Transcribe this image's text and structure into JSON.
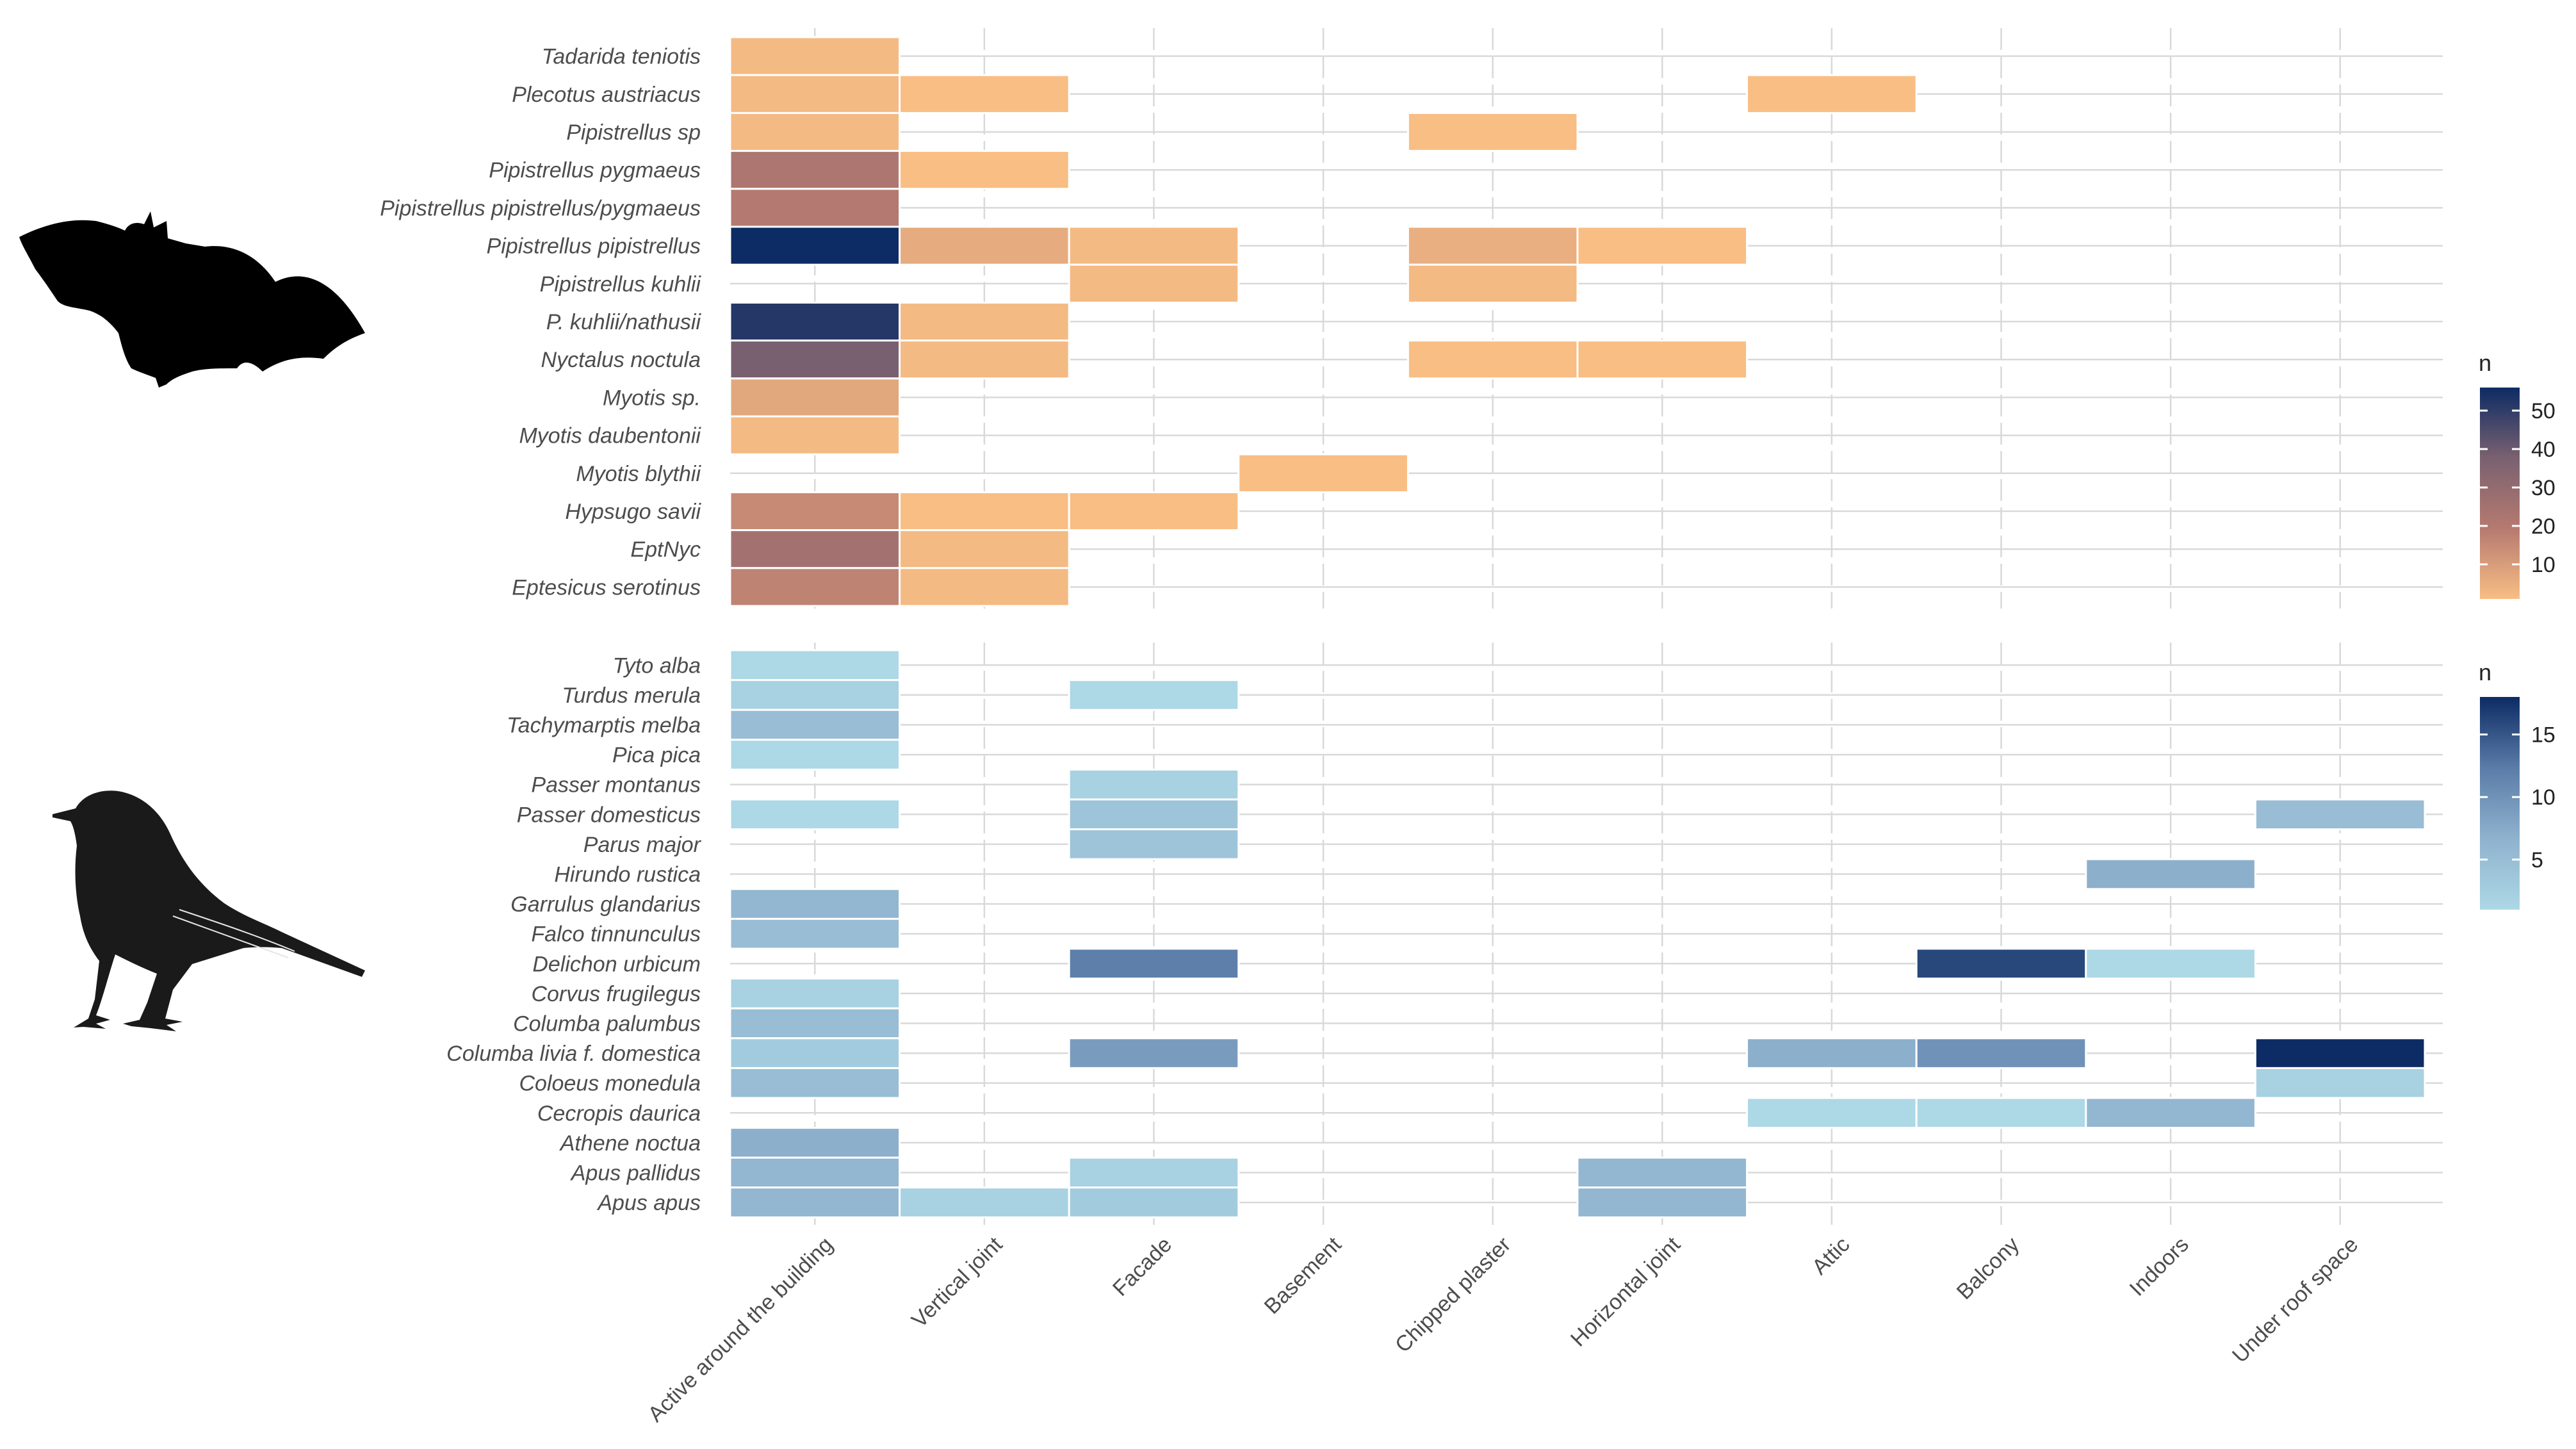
{
  "chart_data": {
    "type": "heatmap",
    "columns": [
      "Active around the building",
      "Vertical joint",
      "Facade",
      "Basement",
      "Chipped plaster",
      "Horizontal joint",
      "Attic",
      "Balcony",
      "Indoors",
      "Under roof space"
    ],
    "panels": [
      {
        "name": "bats",
        "silhouette": "bat-silhouette",
        "legend": {
          "title": "n",
          "ticks": [
            10,
            20,
            30,
            40,
            50
          ],
          "range": [
            1,
            56
          ],
          "colors": [
            "#f8be84",
            "#b67a70",
            "#7a6170",
            "#0d2b64"
          ]
        },
        "rows": [
          "Tadarida teniotis",
          "Plecotus austriacus",
          "Pipistrellus sp",
          "Pipistrellus pygmaeus",
          "Pipistrellus pipistrellus/pygmaeus",
          "Pipistrellus pipistrellus",
          "Pipistrellus kuhlii",
          "P. kuhlii/nathusii",
          "Nyctalus noctula",
          "Myotis sp.",
          "Myotis daubentonii",
          "Myotis blythii",
          "Hypsugo savii",
          "EptNyc",
          "Eptesicus serotinus"
        ],
        "cells": [
          {
            "row": "Tadarida teniotis",
            "col": "Active around the building",
            "n": 2
          },
          {
            "row": "Plecotus austriacus",
            "col": "Active around the building",
            "n": 2
          },
          {
            "row": "Plecotus austriacus",
            "col": "Vertical joint",
            "n": 1
          },
          {
            "row": "Plecotus austriacus",
            "col": "Attic",
            "n": 1
          },
          {
            "row": "Pipistrellus sp",
            "col": "Active around the building",
            "n": 2
          },
          {
            "row": "Pipistrellus sp",
            "col": "Chipped plaster",
            "n": 1
          },
          {
            "row": "Pipistrellus pygmaeus",
            "col": "Active around the building",
            "n": 22
          },
          {
            "row": "Pipistrellus pygmaeus",
            "col": "Vertical joint",
            "n": 1
          },
          {
            "row": "Pipistrellus pipistrellus/pygmaeus",
            "col": "Active around the building",
            "n": 20
          },
          {
            "row": "Pipistrellus pipistrellus",
            "col": "Active around the building",
            "n": 56
          },
          {
            "row": "Pipistrellus pipistrellus",
            "col": "Vertical joint",
            "n": 6
          },
          {
            "row": "Pipistrellus pipistrellus",
            "col": "Facade",
            "n": 2
          },
          {
            "row": "Pipistrellus pipistrellus",
            "col": "Chipped plaster",
            "n": 5
          },
          {
            "row": "Pipistrellus pipistrellus",
            "col": "Horizontal joint",
            "n": 1
          },
          {
            "row": "Pipistrellus kuhlii",
            "col": "Facade",
            "n": 2
          },
          {
            "row": "Pipistrellus kuhlii",
            "col": "Chipped plaster",
            "n": 2
          },
          {
            "row": "P. kuhlii/nathusii",
            "col": "Active around the building",
            "n": 52
          },
          {
            "row": "P. kuhlii/nathusii",
            "col": "Vertical joint",
            "n": 2
          },
          {
            "row": "Nyctalus noctula",
            "col": "Active around the building",
            "n": 38
          },
          {
            "row": "Nyctalus noctula",
            "col": "Vertical joint",
            "n": 2
          },
          {
            "row": "Nyctalus noctula",
            "col": "Chipped plaster",
            "n": 1
          },
          {
            "row": "Nyctalus noctula",
            "col": "Horizontal joint",
            "n": 1
          },
          {
            "row": "Myotis sp.",
            "col": "Active around the building",
            "n": 7
          },
          {
            "row": "Myotis daubentonii",
            "col": "Active around the building",
            "n": 2
          },
          {
            "row": "Myotis blythii",
            "col": "Basement",
            "n": 1
          },
          {
            "row": "Hypsugo savii",
            "col": "Active around the building",
            "n": 15
          },
          {
            "row": "Hypsugo savii",
            "col": "Vertical joint",
            "n": 1
          },
          {
            "row": "Hypsugo savii",
            "col": "Facade",
            "n": 1
          },
          {
            "row": "EptNyc",
            "col": "Active around the building",
            "n": 25
          },
          {
            "row": "EptNyc",
            "col": "Vertical joint",
            "n": 2
          },
          {
            "row": "Eptesicus serotinus",
            "col": "Active around the building",
            "n": 17
          },
          {
            "row": "Eptesicus serotinus",
            "col": "Vertical joint",
            "n": 2
          }
        ]
      },
      {
        "name": "birds",
        "silhouette": "bird-silhouette",
        "legend": {
          "title": "n",
          "ticks": [
            5,
            10,
            15
          ],
          "range": [
            1,
            18
          ],
          "colors": [
            "#add8e6",
            "#8fb2ce",
            "#5a7ca8",
            "#0d2b64"
          ]
        },
        "rows": [
          "Tyto alba",
          "Turdus merula",
          "Tachymarptis melba",
          "Pica pica",
          "Passer montanus",
          "Passer domesticus",
          "Parus major",
          "Hirundo rustica",
          "Garrulus glandarius",
          "Falco tinnunculus",
          "Delichon urbicum",
          "Corvus frugilegus",
          "Columba palumbus",
          "Columba livia f. domestica",
          "Coloeus monedula",
          "Cecropis daurica",
          "Athene noctua",
          "Apus pallidus",
          "Apus apus"
        ],
        "cells": [
          {
            "row": "Tyto alba",
            "col": "Active around the building",
            "n": 1
          },
          {
            "row": "Turdus merula",
            "col": "Active around the building",
            "n": 2
          },
          {
            "row": "Turdus merula",
            "col": "Facade",
            "n": 1
          },
          {
            "row": "Tachymarptis melba",
            "col": "Active around the building",
            "n": 5
          },
          {
            "row": "Pica pica",
            "col": "Active around the building",
            "n": 1
          },
          {
            "row": "Passer montanus",
            "col": "Facade",
            "n": 2
          },
          {
            "row": "Passer domesticus",
            "col": "Active around the building",
            "n": 1
          },
          {
            "row": "Passer domesticus",
            "col": "Facade",
            "n": 4
          },
          {
            "row": "Passer domesticus",
            "col": "Under roof space",
            "n": 5
          },
          {
            "row": "Parus major",
            "col": "Facade",
            "n": 4
          },
          {
            "row": "Hirundo rustica",
            "col": "Indoors",
            "n": 7
          },
          {
            "row": "Garrulus glandarius",
            "col": "Active around the building",
            "n": 6
          },
          {
            "row": "Falco tinnunculus",
            "col": "Active around the building",
            "n": 5
          },
          {
            "row": "Delichon urbicum",
            "col": "Facade",
            "n": 12
          },
          {
            "row": "Delichon urbicum",
            "col": "Balcony",
            "n": 16
          },
          {
            "row": "Delichon urbicum",
            "col": "Indoors",
            "n": 1
          },
          {
            "row": "Corvus frugilegus",
            "col": "Active around the building",
            "n": 2
          },
          {
            "row": "Columba palumbus",
            "col": "Active around the building",
            "n": 5
          },
          {
            "row": "Columba livia f. domestica",
            "col": "Active around the building",
            "n": 3
          },
          {
            "row": "Columba livia f. domestica",
            "col": "Facade",
            "n": 9
          },
          {
            "row": "Columba livia f. domestica",
            "col": "Attic",
            "n": 7
          },
          {
            "row": "Columba livia f. domestica",
            "col": "Balcony",
            "n": 10
          },
          {
            "row": "Columba livia f. domestica",
            "col": "Under roof space",
            "n": 18
          },
          {
            "row": "Coloeus monedula",
            "col": "Active around the building",
            "n": 5
          },
          {
            "row": "Coloeus monedula",
            "col": "Under roof space",
            "n": 2
          },
          {
            "row": "Cecropis daurica",
            "col": "Attic",
            "n": 1
          },
          {
            "row": "Cecropis daurica",
            "col": "Balcony",
            "n": 1
          },
          {
            "row": "Cecropis daurica",
            "col": "Indoors",
            "n": 6
          },
          {
            "row": "Athene noctua",
            "col": "Active around the building",
            "n": 7
          },
          {
            "row": "Apus pallidus",
            "col": "Active around the building",
            "n": 6
          },
          {
            "row": "Apus pallidus",
            "col": "Facade",
            "n": 2
          },
          {
            "row": "Apus pallidus",
            "col": "Horizontal joint",
            "n": 6
          },
          {
            "row": "Apus apus",
            "col": "Active around the building",
            "n": 6
          },
          {
            "row": "Apus apus",
            "col": "Vertical joint",
            "n": 2
          },
          {
            "row": "Apus apus",
            "col": "Facade",
            "n": 3
          },
          {
            "row": "Apus apus",
            "col": "Horizontal joint",
            "n": 6
          }
        ]
      }
    ]
  }
}
